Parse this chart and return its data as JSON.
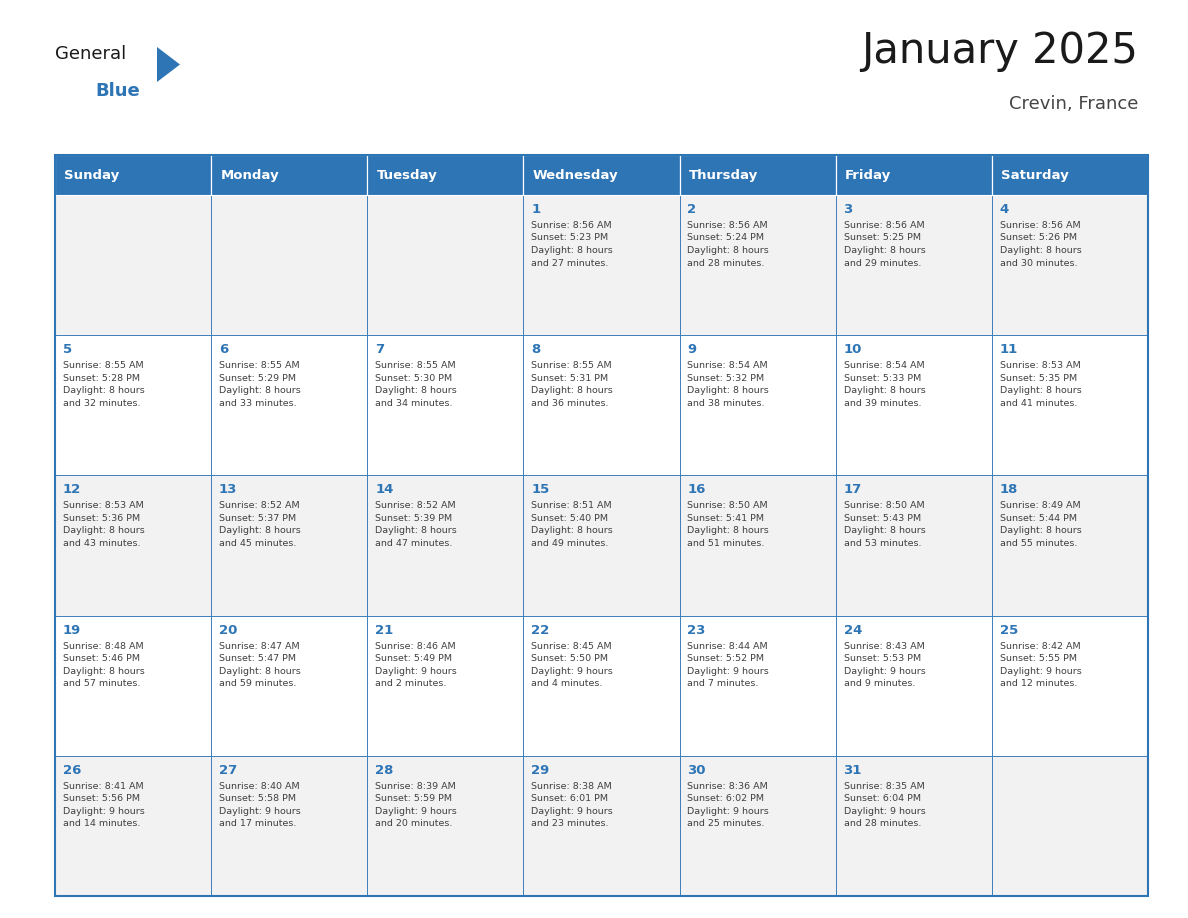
{
  "title": "January 2025",
  "subtitle": "Crevin, France",
  "header_color": "#2E75B6",
  "header_text_color": "#FFFFFF",
  "odd_row_bg": "#F2F2F2",
  "even_row_bg": "#FFFFFF",
  "cell_border_color": "#2E75B6",
  "day_number_color": "#2E75B6",
  "cell_text_color": "#404040",
  "days_of_week": [
    "Sunday",
    "Monday",
    "Tuesday",
    "Wednesday",
    "Thursday",
    "Friday",
    "Saturday"
  ],
  "weeks": [
    [
      {
        "day": "",
        "text": ""
      },
      {
        "day": "",
        "text": ""
      },
      {
        "day": "",
        "text": ""
      },
      {
        "day": "1",
        "text": "Sunrise: 8:56 AM\nSunset: 5:23 PM\nDaylight: 8 hours\nand 27 minutes."
      },
      {
        "day": "2",
        "text": "Sunrise: 8:56 AM\nSunset: 5:24 PM\nDaylight: 8 hours\nand 28 minutes."
      },
      {
        "day": "3",
        "text": "Sunrise: 8:56 AM\nSunset: 5:25 PM\nDaylight: 8 hours\nand 29 minutes."
      },
      {
        "day": "4",
        "text": "Sunrise: 8:56 AM\nSunset: 5:26 PM\nDaylight: 8 hours\nand 30 minutes."
      }
    ],
    [
      {
        "day": "5",
        "text": "Sunrise: 8:55 AM\nSunset: 5:28 PM\nDaylight: 8 hours\nand 32 minutes."
      },
      {
        "day": "6",
        "text": "Sunrise: 8:55 AM\nSunset: 5:29 PM\nDaylight: 8 hours\nand 33 minutes."
      },
      {
        "day": "7",
        "text": "Sunrise: 8:55 AM\nSunset: 5:30 PM\nDaylight: 8 hours\nand 34 minutes."
      },
      {
        "day": "8",
        "text": "Sunrise: 8:55 AM\nSunset: 5:31 PM\nDaylight: 8 hours\nand 36 minutes."
      },
      {
        "day": "9",
        "text": "Sunrise: 8:54 AM\nSunset: 5:32 PM\nDaylight: 8 hours\nand 38 minutes."
      },
      {
        "day": "10",
        "text": "Sunrise: 8:54 AM\nSunset: 5:33 PM\nDaylight: 8 hours\nand 39 minutes."
      },
      {
        "day": "11",
        "text": "Sunrise: 8:53 AM\nSunset: 5:35 PM\nDaylight: 8 hours\nand 41 minutes."
      }
    ],
    [
      {
        "day": "12",
        "text": "Sunrise: 8:53 AM\nSunset: 5:36 PM\nDaylight: 8 hours\nand 43 minutes."
      },
      {
        "day": "13",
        "text": "Sunrise: 8:52 AM\nSunset: 5:37 PM\nDaylight: 8 hours\nand 45 minutes."
      },
      {
        "day": "14",
        "text": "Sunrise: 8:52 AM\nSunset: 5:39 PM\nDaylight: 8 hours\nand 47 minutes."
      },
      {
        "day": "15",
        "text": "Sunrise: 8:51 AM\nSunset: 5:40 PM\nDaylight: 8 hours\nand 49 minutes."
      },
      {
        "day": "16",
        "text": "Sunrise: 8:50 AM\nSunset: 5:41 PM\nDaylight: 8 hours\nand 51 minutes."
      },
      {
        "day": "17",
        "text": "Sunrise: 8:50 AM\nSunset: 5:43 PM\nDaylight: 8 hours\nand 53 minutes."
      },
      {
        "day": "18",
        "text": "Sunrise: 8:49 AM\nSunset: 5:44 PM\nDaylight: 8 hours\nand 55 minutes."
      }
    ],
    [
      {
        "day": "19",
        "text": "Sunrise: 8:48 AM\nSunset: 5:46 PM\nDaylight: 8 hours\nand 57 minutes."
      },
      {
        "day": "20",
        "text": "Sunrise: 8:47 AM\nSunset: 5:47 PM\nDaylight: 8 hours\nand 59 minutes."
      },
      {
        "day": "21",
        "text": "Sunrise: 8:46 AM\nSunset: 5:49 PM\nDaylight: 9 hours\nand 2 minutes."
      },
      {
        "day": "22",
        "text": "Sunrise: 8:45 AM\nSunset: 5:50 PM\nDaylight: 9 hours\nand 4 minutes."
      },
      {
        "day": "23",
        "text": "Sunrise: 8:44 AM\nSunset: 5:52 PM\nDaylight: 9 hours\nand 7 minutes."
      },
      {
        "day": "24",
        "text": "Sunrise: 8:43 AM\nSunset: 5:53 PM\nDaylight: 9 hours\nand 9 minutes."
      },
      {
        "day": "25",
        "text": "Sunrise: 8:42 AM\nSunset: 5:55 PM\nDaylight: 9 hours\nand 12 minutes."
      }
    ],
    [
      {
        "day": "26",
        "text": "Sunrise: 8:41 AM\nSunset: 5:56 PM\nDaylight: 9 hours\nand 14 minutes."
      },
      {
        "day": "27",
        "text": "Sunrise: 8:40 AM\nSunset: 5:58 PM\nDaylight: 9 hours\nand 17 minutes."
      },
      {
        "day": "28",
        "text": "Sunrise: 8:39 AM\nSunset: 5:59 PM\nDaylight: 9 hours\nand 20 minutes."
      },
      {
        "day": "29",
        "text": "Sunrise: 8:38 AM\nSunset: 6:01 PM\nDaylight: 9 hours\nand 23 minutes."
      },
      {
        "day": "30",
        "text": "Sunrise: 8:36 AM\nSunset: 6:02 PM\nDaylight: 9 hours\nand 25 minutes."
      },
      {
        "day": "31",
        "text": "Sunrise: 8:35 AM\nSunset: 6:04 PM\nDaylight: 9 hours\nand 28 minutes."
      },
      {
        "day": "",
        "text": ""
      }
    ]
  ],
  "logo_text_general": "General",
  "logo_text_blue": "Blue",
  "logo_color_general": "#1a1a1a",
  "logo_color_blue": "#2E75B6",
  "logo_triangle_color": "#2E75B6"
}
